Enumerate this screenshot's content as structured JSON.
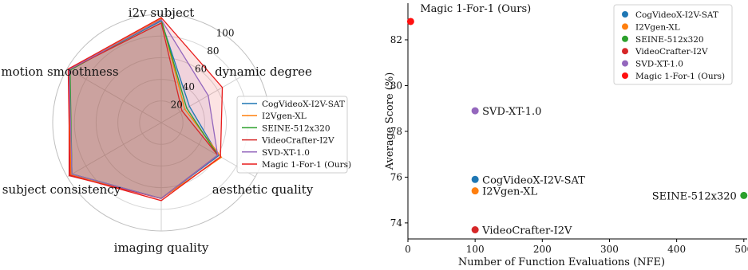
{
  "charts": [
    {
      "type": "radar",
      "axes": [
        "i2v subject",
        "dynamic degree",
        "aesthetic quality",
        "imaging quality",
        "subject consistency",
        "motion smoothness"
      ],
      "radial_ticks": [
        20,
        40,
        60,
        80,
        100
      ],
      "rlim": [
        0,
        100
      ],
      "legend_position": "center-right",
      "series": [
        {
          "name": "CogVideoX-I2V-SAT",
          "color": "#1f77b4",
          "values": [
            94,
            30,
            61,
            70,
            95,
            98
          ]
        },
        {
          "name": "I2Vgen-XL",
          "color": "#ff7f0e",
          "values": [
            96,
            25,
            64,
            70,
            96,
            98
          ]
        },
        {
          "name": "SEINE-512x320",
          "color": "#2ca02c",
          "values": [
            95,
            27,
            60,
            70,
            95,
            97
          ]
        },
        {
          "name": "VideoCrafter-I2V",
          "color": "#d62728",
          "values": [
            92,
            22,
            60,
            70,
            98,
            98
          ]
        },
        {
          "name": "SVD-XT-1.0",
          "color": "#9467bd",
          "values": [
            95,
            50,
            60,
            70,
            95,
            98
          ]
        },
        {
          "name": "Magic 1-For-1 (Ours)",
          "color": "#e81c1c",
          "values": [
            97,
            65,
            63,
            72,
            97,
            99
          ]
        }
      ]
    },
    {
      "type": "scatter",
      "xlabel": "Number of Function Evaluations (NFE)",
      "ylabel": "Average Score (%)",
      "xlim": [
        0,
        505
      ],
      "ylim": [
        73.3,
        83.6
      ],
      "xticks": [
        0,
        100,
        200,
        300,
        400,
        500
      ],
      "yticks": [
        74,
        76,
        78,
        80,
        82
      ],
      "legend_position": "upper-right",
      "points": [
        {
          "name": "CogVideoX-I2V-SAT",
          "color": "#1f77b4",
          "x": 100,
          "y": 75.9,
          "label": "CogVideoX-I2V-SAT",
          "label_side": "right"
        },
        {
          "name": "I2Vgen-XL",
          "color": "#ff7f0e",
          "x": 100,
          "y": 75.4,
          "label": "I2Vgen-XL",
          "label_side": "right"
        },
        {
          "name": "SEINE-512x320",
          "color": "#2ca02c",
          "x": 500,
          "y": 75.2,
          "label": "SEINE-512x320",
          "label_side": "left"
        },
        {
          "name": "VideoCrafter-I2V",
          "color": "#d62728",
          "x": 100,
          "y": 73.7,
          "label": "VideoCrafter-I2V",
          "label_side": "right"
        },
        {
          "name": "SVD-XT-1.0",
          "color": "#9467bd",
          "x": 100,
          "y": 78.9,
          "label": "SVD-XT-1.0",
          "label_side": "right"
        },
        {
          "name": "Magic 1-For-1 (Ours)",
          "color": "#ff1010",
          "x": 4,
          "y": 82.8,
          "label": "Magic 1-For-1 (Ours)",
          "label_side": "above-right"
        }
      ]
    }
  ]
}
